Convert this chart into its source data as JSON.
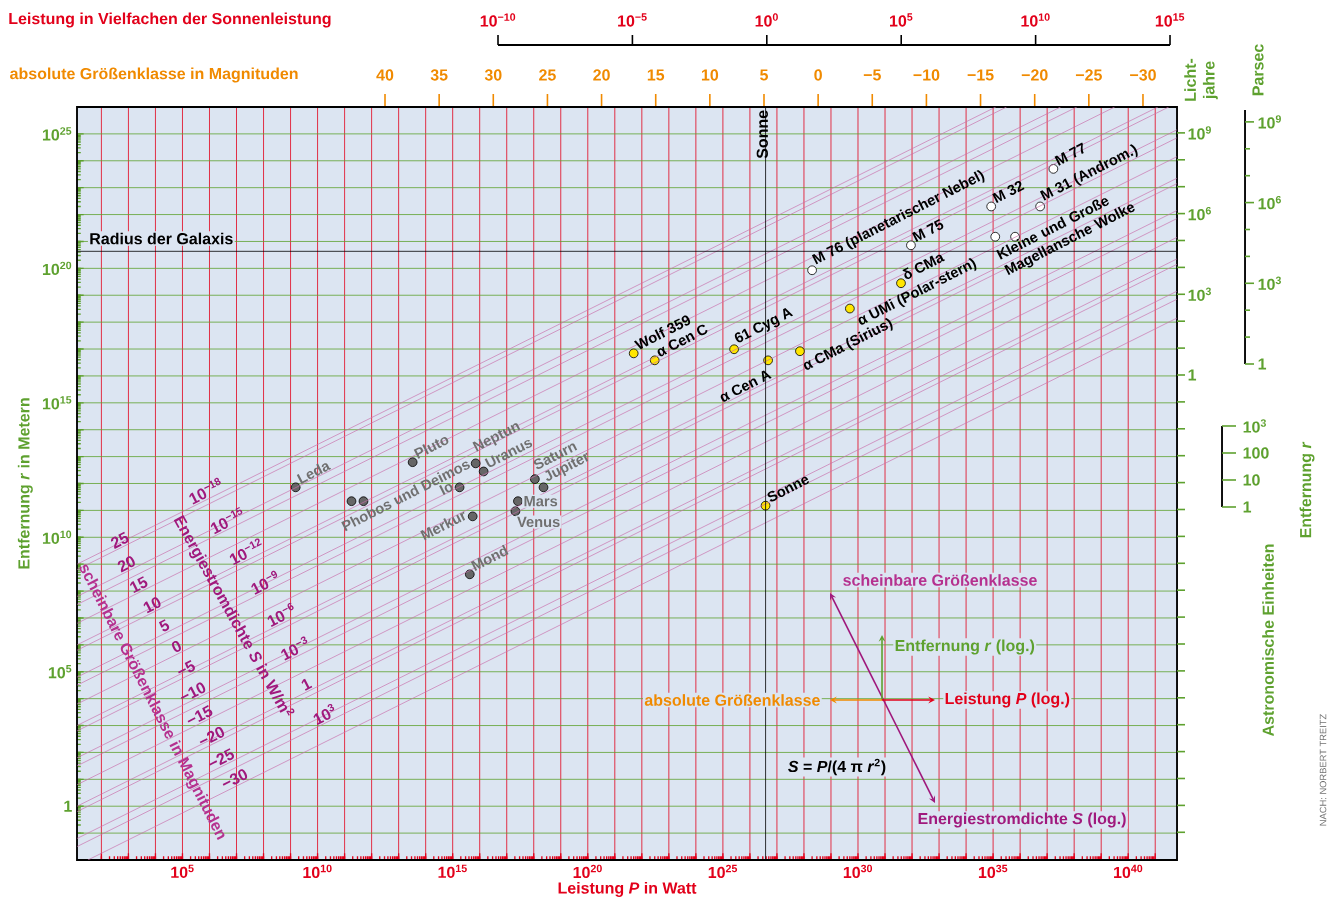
{
  "chart_data": {
    "type": "scatter",
    "log": "xy",
    "grid": true,
    "xlabel": "Leistung *P* in Watt",
    "ylabel": "Entfernung *r* in Metern",
    "x2label": "Leistung in Vielfachen der Sonnenleistung",
    "y2label": "Licht-jahre",
    "y3label": "Parsec",
    "xlim": [
      12.5,
      6.4e+41
    ],
    "ylim": [
      0.01,
      1e+26
    ],
    "xticks": [
      {
        "value": 100.0,
        "label": null
      },
      {
        "value": 1000.0,
        "label": null
      },
      {
        "value": 10000.0,
        "label": null
      },
      {
        "value": 100000.0,
        "label": "10$^{5}$"
      },
      {
        "value": 1000000.0,
        "label": null
      },
      {
        "value": 10000000.0,
        "label": null
      },
      {
        "value": 100000000.0,
        "label": null
      },
      {
        "value": 1000000000.0,
        "label": null
      },
      {
        "value": 10000000000.0,
        "label": "10$^{10}$"
      },
      {
        "value": 100000000000.0,
        "label": null
      },
      {
        "value": 1000000000000.0,
        "label": null
      },
      {
        "value": 10000000000000.0,
        "label": null
      },
      {
        "value": 100000000000000.0,
        "label": null
      },
      {
        "value": 1000000000000000.0,
        "label": "10$^{15}$"
      },
      {
        "value": 1e+16,
        "label": null
      },
      {
        "value": 1e+17,
        "label": null
      },
      {
        "value": 1e+18,
        "label": null
      },
      {
        "value": 1e+19,
        "label": null
      },
      {
        "value": 1e+20,
        "label": "10$^{20}$"
      },
      {
        "value": 1e+21,
        "label": null
      },
      {
        "value": 1e+22,
        "label": null
      },
      {
        "value": 1e+23,
        "label": null
      },
      {
        "value": 1e+24,
        "label": null
      },
      {
        "value": 1e+25,
        "label": "10$^{25}$"
      },
      {
        "value": 1e+26,
        "label": null
      },
      {
        "value": 1e+27,
        "label": null
      },
      {
        "value": 1e+28,
        "label": null
      },
      {
        "value": 1e+29,
        "label": null
      },
      {
        "value": 1e+30,
        "label": "10$^{30}$"
      },
      {
        "value": 1e+31,
        "label": null
      },
      {
        "value": 1e+32,
        "label": null
      },
      {
        "value": 1e+33,
        "label": null
      },
      {
        "value": 1e+34,
        "label": null
      },
      {
        "value": 1e+35,
        "label": "10$^{35}$"
      },
      {
        "value": 1e+36,
        "label": null
      },
      {
        "value": 1e+37,
        "label": null
      },
      {
        "value": 1e+38,
        "label": null
      },
      {
        "value": 1e+39,
        "label": null
      },
      {
        "value": 1e+40,
        "label": "10$^{40}$"
      },
      {
        "value": 1e+41,
        "label": null
      }
    ],
    "yticks": [
      {
        "value": 0.1,
        "label": null
      },
      1,
      {
        "value": 10.0,
        "label": null
      },
      {
        "value": 100.0,
        "label": null
      },
      {
        "value": 1000.0,
        "label": null
      },
      {
        "value": 10000.0,
        "label": null
      },
      {
        "value": 100000.0,
        "label": "10$^{5}$"
      },
      {
        "value": 1000000.0,
        "label": null
      },
      {
        "value": 10000000.0,
        "label": null
      },
      {
        "value": 100000000.0,
        "label": null
      },
      {
        "value": 1000000000.0,
        "label": null
      },
      {
        "value": 10000000000.0,
        "label": "10$^{10}$"
      },
      {
        "value": 100000000000.0,
        "label": null
      },
      {
        "value": 1000000000000.0,
        "label": null
      },
      {
        "value": 10000000000000.0,
        "label": null
      },
      {
        "value": 100000000000000.0,
        "label": null
      },
      {
        "value": 1000000000000000.0,
        "label": "10$^{15}$"
      },
      {
        "value": 1e+16,
        "label": null
      },
      {
        "value": 1e+17,
        "label": null
      },
      {
        "value": 1e+18,
        "label": null
      },
      {
        "value": 1e+19,
        "label": null
      },
      {
        "value": 1e+20,
        "label": "10$^{20}$"
      },
      {
        "value": 1e+21,
        "label": null
      },
      {
        "value": 1e+22,
        "label": null
      },
      {
        "value": 1e+23,
        "label": null
      },
      {
        "value": 1e+24,
        "label": null
      },
      {
        "value": 1e+25,
        "label": "10$^{25}$"
      }
    ],
    "series": [
      {
        "color": "#666666",
        "marker": "circle",
        "x": [
          1550000000.0,
          180000000000.0,
          500000000000.0,
          33000000000000.0,
          1800000000000000.0,
          7100000000000000.0,
          1.4e+16,
          5500000000000000.0,
          4300000000000000.0,
          2.6e+17,
          2.1e+17,
          1.1e+18,
          2.3e+18
        ],
        "values": [
          720000000000.0,
          220000000000.0,
          220000000000.0,
          6200000000000.0,
          720000000000.0,
          5600000000000.0,
          2800000000000.0,
          60000000000.0,
          420000000.0,
          220000000000.0,
          93000000000.0,
          1450000000000.0,
          720000000000.0
        ]
      },
      {
        "color": "#ffe600",
        "marker": "circle",
        "x": [
          5e+21,
          3e+22,
          2.6e+25,
          4.7e+26,
          7.1e+27,
          5e+29,
          3.9e+31,
          3.8e+26
        ],
        "values": [
          6.9e+16,
          3.8e+16,
          9.8e+16,
          3.8e+16,
          8.3e+16,
          3.2e+18,
          2.8e+19,
          150000000000.0
        ]
      },
      {
        "color": "#ffffff",
        "marker": "circle",
        "x": [
          2e+28,
          9.1e+31,
          8.5e+34,
          1.7e+37,
          5.5e+36,
          1.2e+35,
          6.5e+35
        ],
        "values": [
          8.5e+19,
          7.2e+20,
          2e+22,
          5e+23,
          2e+22,
          1.5e+21,
          1.5e+21
        ]
      },
      {
        "type": "line",
        "color": "#c86eaa",
        "x": [
          12.59,
          1.259e+35
        ],
        "values": [
          1000000000.0,
          1e+26
        ]
      },
      {
        "type": "line",
        "color": "#c86eaa",
        "x": [
          12.59,
          1.259e+38
        ],
        "values": [
          31620000.0,
          1e+26
        ]
      },
      {
        "type": "line",
        "color": "#c86eaa",
        "x": [
          12.59,
          1.259e+41
        ],
        "values": [
          1000000.0,
          1e+26
        ]
      },
      {
        "type": "line",
        "color": "#c86eaa",
        "x": [
          12.59,
          6.31e+41
        ],
        "values": [
          31620.0,
          7.08e+24
        ]
      },
      {
        "type": "line",
        "color": "#c86eaa",
        "x": [
          12.59,
          6.31e+41
        ],
        "values": [
          1000,
          2.239e+23
        ]
      },
      {
        "type": "line",
        "color": "#c86eaa",
        "x": [
          12.59,
          6.31e+41
        ],
        "values": [
          31.62,
          7.08e+21
        ]
      },
      {
        "type": "line",
        "color": "#c86eaa",
        "x": [
          12.59,
          6.31e+41
        ],
        "values": [
          1,
          2.239e+20
        ]
      },
      {
        "type": "line",
        "color": "#c86eaa",
        "x": [
          12.59,
          6.31e+41
        ],
        "values": [
          0.03162,
          7.08e+18
        ]
      },
      {
        "type": "line",
        "color": "#c86eaa",
        "x": [
          12.59,
          3.162e+35
        ],
        "values": [
          631000000.0,
          1e+26
        ]
      },
      {
        "type": "line",
        "color": "#c86eaa",
        "x": [
          12.59,
          3.162e+37
        ],
        "values": [
          63100000.0,
          1e+26
        ]
      },
      {
        "type": "line",
        "color": "#c86eaa",
        "x": [
          12.59,
          3.162e+39
        ],
        "values": [
          6310000.0,
          1e+26
        ]
      },
      {
        "type": "line",
        "color": "#c86eaa",
        "x": [
          12.59,
          3.162e+41
        ],
        "values": [
          631000.0,
          1e+26
        ]
      },
      {
        "type": "line",
        "color": "#c86eaa",
        "x": [
          12.59,
          6.31e+41
        ],
        "values": [
          63100.0,
          1.413e+25
        ]
      },
      {
        "type": "line",
        "color": "#c86eaa",
        "x": [
          12.59,
          6.31e+41
        ],
        "values": [
          6310,
          1.413e+24
        ]
      },
      {
        "type": "line",
        "color": "#c86eaa",
        "x": [
          12.59,
          6.31e+41
        ],
        "values": [
          631,
          1.413e+23
        ]
      },
      {
        "type": "line",
        "color": "#c86eaa",
        "x": [
          12.59,
          6.31e+41
        ],
        "values": [
          63.1,
          1.413e+22
        ]
      },
      {
        "type": "line",
        "color": "#c86eaa",
        "x": [
          12.59,
          6.31e+41
        ],
        "values": [
          6.31,
          1.413e+21
        ]
      },
      {
        "type": "line",
        "color": "#c86eaa",
        "x": [
          12.59,
          6.31e+41
        ],
        "values": [
          0.631,
          1.413e+20
        ]
      },
      {
        "type": "line",
        "color": "#c86eaa",
        "x": [
          12.59,
          6.31e+41
        ],
        "values": [
          0.0631,
          1.413e+19
        ]
      },
      {
        "type": "line",
        "color": "#c86eaa",
        "x": [
          31.62,
          6.31e+41
        ],
        "values": [
          0.01,
          1.413e+18
        ]
      }
    ],
    "ref_lines": [
      {
        "axis": "x",
        "value": 3.8e+26,
        "label": "Sonne"
      },
      {
        "axis": "y",
        "value": 4.3e+20,
        "label": "Radius der Galaxis"
      }
    ],
    "annotations": [
      {
        "text": "Leda",
        "x": 1550000000.0,
        "y": 720000000000.0
      },
      {
        "text": "Phobos und Deimos",
        "x": 180000000000.0,
        "y": 220000000000.0
      },
      {
        "text": "Pluto",
        "x": 33000000000000.0,
        "y": 6200000000000.0
      },
      {
        "text": "Io",
        "x": 1800000000000000.0,
        "y": 720000000000.0
      },
      {
        "text": "Neptun",
        "x": 7100000000000000.0,
        "y": 5600000000000.0
      },
      {
        "text": "Uranus",
        "x": 1.4e+16,
        "y": 2800000000000.0
      },
      {
        "text": "Merkur",
        "x": 5500000000000000.0,
        "y": 60000000000.0
      },
      {
        "text": "Mond",
        "x": 4300000000000000.0,
        "y": 420000000.0
      },
      {
        "text": "Mars",
        "x": 2.6e+17,
        "y": 220000000000.0
      },
      {
        "text": "Venus",
        "x": 2.1e+17,
        "y": 93000000000.0
      },
      {
        "text": "Saturn",
        "x": 1.1e+18,
        "y": 1450000000000.0
      },
      {
        "text": "Jupiter",
        "x": 2.3e+18,
        "y": 720000000000.0
      },
      {
        "text": "Wolf 359",
        "x": 5e+21,
        "y": 6.9e+16
      },
      {
        "text": "α Cen C",
        "x": 3e+22,
        "y": 3.8e+16
      },
      {
        "text": "61 Cyg A",
        "x": 2.6e+25,
        "y": 9.8e+16
      },
      {
        "text": "α Cen A",
        "x": 4.7e+26,
        "y": 3.8e+16
      },
      {
        "text": "α CMa (Sirius)",
        "x": 7.1e+27,
        "y": 8.3e+16
      },
      {
        "text": "α UMi (Polar-stern)",
        "x": 5e+29,
        "y": 3.2e+18
      },
      {
        "text": "δ CMa",
        "x": 3.9e+31,
        "y": 2.8e+19
      },
      {
        "text": "Sonne",
        "x": 3.8e+26,
        "y": 150000000000.0
      },
      {
        "text": "M 76 (planetarischer Nebel)",
        "x": 2e+28,
        "y": 8.5e+19
      },
      {
        "text": "M 75",
        "x": 9.1e+31,
        "y": 7.2e+20
      },
      {
        "text": "M 32",
        "x": 8.5e+34,
        "y": 2e+22
      },
      {
        "text": "M 77",
        "x": 1.7e+37,
        "y": 5e+23
      },
      {
        "text": "M 31 (Androm.)",
        "x": 5.5e+36,
        "y": 2e+22
      },
      {
        "text": "Kleine und Große Magellansche Wolke",
        "x": 1.2e+35,
        "y": 1.5e+21
      },
      {
        "text": "10$^{−18}$",
        "x": 1000000.0,
        "y": 282000000000.0
      },
      {
        "text": "10$^{−15}$",
        "x": 6310000.0,
        "y": 22400000000.0
      },
      {
        "text": "10$^{−12}$",
        "x": 31600000.0,
        "y": 1580000000.0
      },
      {
        "text": "10$^{−9}$",
        "x": 158000000.0,
        "y": 112000000.0
      },
      {
        "text": "10$^{−6}$",
        "x": 631000000.0,
        "y": 7080000.0
      },
      {
        "text": "10$^{−3}$",
        "x": 2000000000.0,
        "y": 398000.0
      },
      {
        "text": "1",
        "x": 5010000000.0,
        "y": 20000.0
      },
      {
        "text": "10$^{3}$",
        "x": 25100000000.0,
        "y": 1413
      },
      {
        "text": "25",
        "x": 631,
        "y": 4470000000.0
      },
      {
        "text": "20",
        "x": 1122,
        "y": 596000000.0
      },
      {
        "text": "15",
        "x": 3162,
        "y": 100000000.0
      },
      {
        "text": "10",
        "x": 10000.0,
        "y": 17800000.0
      },
      {
        "text": "5",
        "x": 28200.0,
        "y": 2990000.0
      },
      {
        "text": "0",
        "x": 79400.0,
        "y": 501000.0
      },
      {
        "text": "−5",
        "x": 178000.0,
        "y": 75000.0
      },
      {
        "text": "−10",
        "x": 316000.0,
        "y": 10000.0
      },
      {
        "text": "−15",
        "x": 562000.0,
        "y": 1334
      },
      {
        "text": "−20",
        "x": 1580000.0,
        "y": 224
      },
      {
        "text": "−25",
        "x": 3550000.0,
        "y": 33.5
      },
      {
        "text": "−30",
        "x": 11200000.0,
        "y": 5.96
      },
      "Energiestromdichte *S* in W/m$^{2}$",
      "scheinbare Größenklasse in Magnituden",
      "scheinbare Größenklasse",
      "Entfernung *r* (log.)",
      "absolute Größenklasse",
      "Leistung *P* (log.)",
      "*S* = *P*/(4 π *r*$^{2}$)",
      "Energiestromdichte *S* (log.)",
      "Entfernung *r*",
      "NACH: NORBERT TREITZ",
      "absolute Größenklasse in Magnituden",
      "40",
      "35",
      "30",
      "25",
      "20",
      "15",
      "10",
      "5",
      "0",
      "−5",
      "−10",
      "−15",
      "−20",
      "−25",
      "−30",
      "Astronomische Einheiten",
      "1",
      "10",
      "100",
      "10$^{3}$",
      "10$^{−10}$",
      "10$^{−5}$",
      "10$^{0}$",
      "10$^{5}$",
      "10$^{10}$",
      "10$^{15}$",
      "1",
      "10$^{3}$",
      "10$^{6}$",
      "10$^{9}$",
      "1",
      "10$^{3}$",
      "10$^{6}$",
      "10$^{9}$"
    ]
  }
}
